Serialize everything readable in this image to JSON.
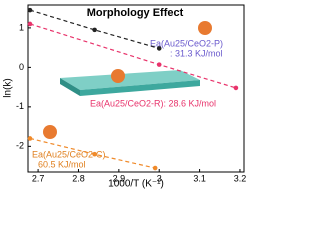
{
  "chart_data": {
    "type": "line",
    "title": "Morphology Effect",
    "xlabel": "1000/T (K⁻¹)",
    "ylabel": "ln(k)",
    "xlim": [
      2.675,
      3.21
    ],
    "xticks": [
      2.7,
      2.8,
      2.9,
      3.0,
      3.1,
      3.2
    ],
    "ylim": [
      -2.65,
      1.58
    ],
    "yticks": [
      -2,
      -1,
      0,
      1
    ],
    "series": [
      {
        "name": "Ea(Au25/CeO2-P)",
        "color": "#222222",
        "x": [
          2.68,
          2.84,
          3.0
        ],
        "values": [
          1.45,
          0.95,
          0.48
        ]
      },
      {
        "name": "Ea(Au25/CeO2-R)",
        "color": "#e8336b",
        "x": [
          2.68,
          3.0,
          3.19
        ],
        "values": [
          1.1,
          0.07,
          -0.52
        ]
      },
      {
        "name": "Ea(Au25/CeO2-C)",
        "color": "#f08a2a",
        "x": [
          2.68,
          2.84,
          2.99
        ],
        "values": [
          -1.8,
          -2.2,
          -2.55
        ]
      }
    ],
    "annotations": [
      ": 31.3 KJ/mol",
      "Ea(Au25/CeO2-R): 28.6 KJ/mol",
      "60.5 KJ/mol"
    ]
  }
}
